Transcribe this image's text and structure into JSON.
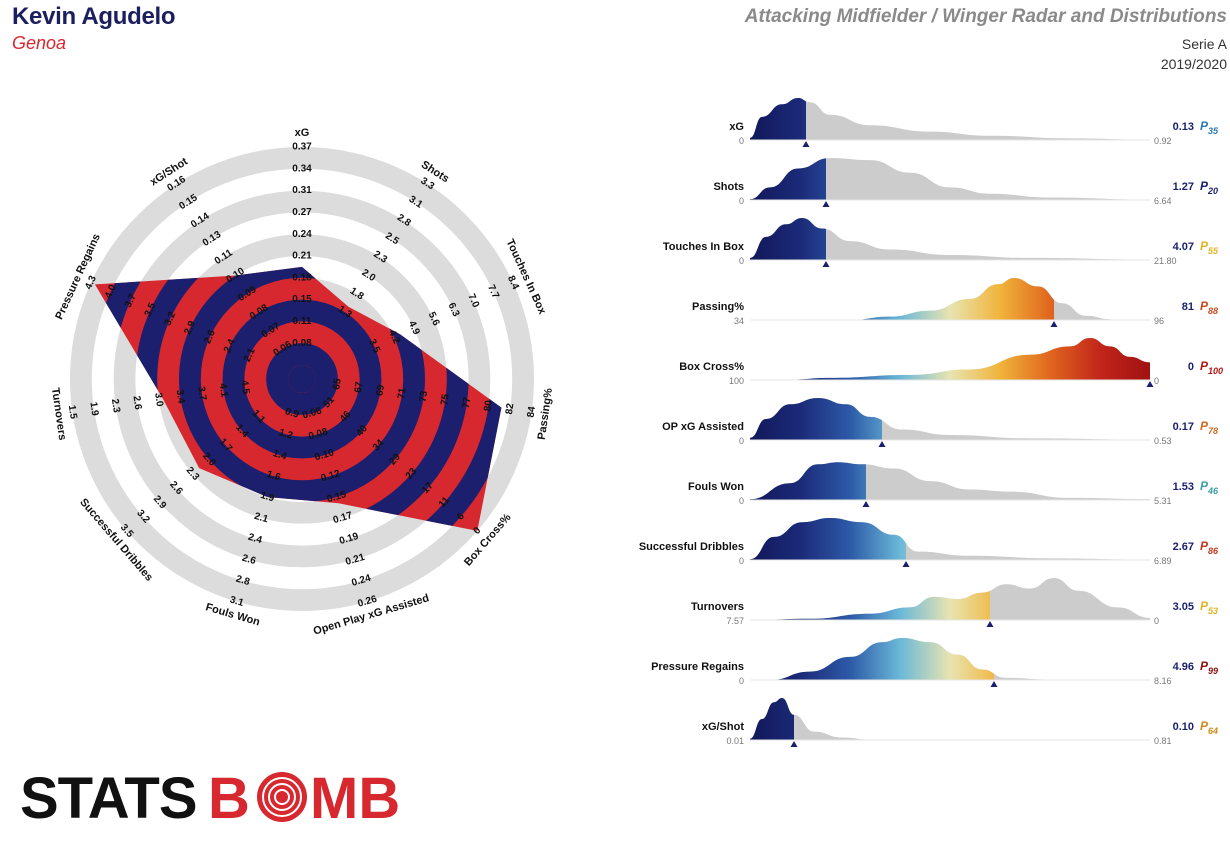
{
  "header": {
    "player": "Kevin Agudelo",
    "team": "Genoa",
    "template": "Attacking Midfielder / Winger Radar and Distributions",
    "competition": "Serie A",
    "season": "2019/2020"
  },
  "colors": {
    "navy": "#1b1f6e",
    "red": "#d7282f",
    "ring_grey": "#dcdcdc",
    "dist_grey": "#cccccc",
    "logo_black": "#111111",
    "logo_red": "#d7282f"
  },
  "logo": {
    "text_left": "STATS",
    "text_b": "B",
    "text_right": "MB"
  },
  "chart_data": [
    {
      "type": "radar",
      "axes": [
        {
          "label": "xG",
          "ticks": [
            "0.08",
            "0.11",
            "0.15",
            "0.18",
            "0.21",
            "0.24",
            "0.27",
            "0.31",
            "0.34",
            "0.37"
          ],
          "value_fraction": 0.45
        },
        {
          "label": "Shots",
          "ticks": [
            "1.3",
            "1.8",
            "2.0",
            "2.3",
            "2.5",
            "2.8",
            "3.1",
            "3.3"
          ],
          "value_fraction": 0.33
        },
        {
          "label": "Touches In Box",
          "ticks": [
            "3.5",
            "4.2",
            "4.9",
            "5.6",
            "6.3",
            "7.0",
            "7.7",
            "8.4"
          ],
          "value_fraction": 0.43
        },
        {
          "label": "Passing%",
          "ticks": [
            "65",
            "67",
            "69",
            "71",
            "73",
            "75",
            "77",
            "80",
            "82",
            "84"
          ],
          "value_fraction": 0.86
        },
        {
          "label": "Box Cross%",
          "ticks": [
            "51",
            "46",
            "40",
            "34",
            "29",
            "23",
            "17",
            "11",
            "6",
            "0"
          ],
          "value_fraction": 1.0
        },
        {
          "label": "Open Play xG Assisted",
          "ticks": [
            "0.06",
            "0.08",
            "0.10",
            "0.12",
            "0.15",
            "0.17",
            "0.19",
            "0.21",
            "0.24",
            "0.26"
          ],
          "value_fraction": 0.53
        },
        {
          "label": "Fouls Won",
          "ticks": [
            "0.9",
            "1.2",
            "1.4",
            "1.6",
            "1.9",
            "2.1",
            "2.4",
            "2.6",
            "2.8",
            "3.1"
          ],
          "value_fraction": 0.5
        },
        {
          "label": "Successful Dribbles",
          "ticks": [
            "1.1",
            "1.4",
            "1.7",
            "2.0",
            "2.3",
            "2.6",
            "2.9",
            "3.2",
            "3.5"
          ],
          "value_fraction": 0.56
        },
        {
          "label": "Turnovers",
          "ticks": [
            "4.5",
            "4.1",
            "3.7",
            "3.4",
            "3.0",
            "2.6",
            "2.3",
            "1.9",
            "1.5"
          ],
          "value_fraction": 0.58
        },
        {
          "label": "Pressure Regains",
          "ticks": [
            "2.1",
            "2.4",
            "2.6",
            "2.9",
            "3.2",
            "3.5",
            "3.7",
            "4.0",
            "4.3"
          ],
          "value_fraction": 0.98
        },
        {
          "label": "xG/Shot",
          "ticks": [
            "0.06",
            "0.07",
            "0.08",
            "0.09",
            "0.10",
            "0.11",
            "0.13",
            "0.14",
            "0.15",
            "0.16"
          ],
          "value_fraction": 0.5
        }
      ]
    },
    {
      "type": "area",
      "metrics": [
        {
          "label": "xG",
          "min": "0",
          "max": "0.92",
          "value": "0.13",
          "percentile": "35",
          "p_color": "#2a7ab5",
          "marker": 0.14,
          "curve": [
            [
              0,
              0.05
            ],
            [
              0.03,
              0.55
            ],
            [
              0.08,
              0.85
            ],
            [
              0.12,
              1.0
            ],
            [
              0.15,
              0.9
            ],
            [
              0.2,
              0.6
            ],
            [
              0.3,
              0.35
            ],
            [
              0.45,
              0.2
            ],
            [
              0.6,
              0.1
            ],
            [
              0.8,
              0.04
            ],
            [
              1,
              0.01
            ]
          ]
        },
        {
          "label": "Shots",
          "min": "0",
          "max": "6.64",
          "value": "1.27",
          "percentile": "20",
          "p_color": "#1b1f6e",
          "marker": 0.19,
          "curve": [
            [
              0,
              0.02
            ],
            [
              0.05,
              0.3
            ],
            [
              0.12,
              0.75
            ],
            [
              0.2,
              1.0
            ],
            [
              0.3,
              0.95
            ],
            [
              0.4,
              0.65
            ],
            [
              0.5,
              0.3
            ],
            [
              0.6,
              0.15
            ],
            [
              0.75,
              0.06
            ],
            [
              1,
              0.01
            ]
          ]
        },
        {
          "label": "Touches In Box",
          "min": "0",
          "max": "21.80",
          "value": "4.07",
          "percentile": "55",
          "p_color": "#e3b420",
          "marker": 0.19,
          "curve": [
            [
              0,
              0.05
            ],
            [
              0.04,
              0.55
            ],
            [
              0.09,
              0.85
            ],
            [
              0.13,
              1.0
            ],
            [
              0.18,
              0.75
            ],
            [
              0.25,
              0.45
            ],
            [
              0.35,
              0.25
            ],
            [
              0.5,
              0.12
            ],
            [
              0.7,
              0.05
            ],
            [
              1,
              0.01
            ]
          ]
        },
        {
          "label": "Passing%",
          "min": "34",
          "max": "96",
          "value": "81",
          "percentile": "88",
          "p_color": "#c8491d",
          "marker": 0.76,
          "curve": [
            [
              0.25,
              0
            ],
            [
              0.35,
              0.08
            ],
            [
              0.45,
              0.22
            ],
            [
              0.55,
              0.5
            ],
            [
              0.62,
              0.85
            ],
            [
              0.66,
              1.0
            ],
            [
              0.72,
              0.8
            ],
            [
              0.78,
              0.4
            ],
            [
              0.84,
              0.1
            ],
            [
              0.9,
              0.02
            ]
          ]
        },
        {
          "label": "Box Cross%",
          "min": "100",
          "max": "0",
          "value": "0",
          "percentile": "100",
          "p_color": "#b3160f",
          "marker": 1.0,
          "curve": [
            [
              0,
              0
            ],
            [
              0.1,
              0.01
            ],
            [
              0.2,
              0.05
            ],
            [
              0.4,
              0.12
            ],
            [
              0.55,
              0.25
            ],
            [
              0.7,
              0.6
            ],
            [
              0.8,
              0.8
            ],
            [
              0.85,
              1.0
            ],
            [
              0.9,
              0.8
            ],
            [
              0.95,
              0.55
            ],
            [
              1,
              0.42
            ]
          ]
        },
        {
          "label": "OP xG Assisted",
          "min": "0",
          "max": "0.53",
          "value": "0.17",
          "percentile": "78",
          "p_color": "#d06a1f",
          "marker": 0.33,
          "curve": [
            [
              0,
              0.05
            ],
            [
              0.04,
              0.5
            ],
            [
              0.1,
              0.85
            ],
            [
              0.17,
              1.0
            ],
            [
              0.24,
              0.85
            ],
            [
              0.3,
              0.55
            ],
            [
              0.38,
              0.25
            ],
            [
              0.5,
              0.12
            ],
            [
              0.7,
              0.04
            ],
            [
              1,
              0.01
            ]
          ]
        },
        {
          "label": "Fouls Won",
          "min": "0",
          "max": "5.31",
          "value": "1.53",
          "percentile": "46",
          "p_color": "#3aa0a8",
          "marker": 0.29,
          "curve": [
            [
              0,
              0.02
            ],
            [
              0.1,
              0.4
            ],
            [
              0.17,
              0.85
            ],
            [
              0.22,
              0.9
            ],
            [
              0.28,
              0.85
            ],
            [
              0.36,
              0.75
            ],
            [
              0.45,
              0.45
            ],
            [
              0.55,
              0.25
            ],
            [
              0.65,
              0.2
            ],
            [
              0.8,
              0.05
            ],
            [
              1,
              0.02
            ]
          ]
        },
        {
          "label": "Successful Dribbles",
          "min": "0",
          "max": "6.89",
          "value": "2.67",
          "percentile": "86",
          "p_color": "#c2371a",
          "marker": 0.39,
          "curve": [
            [
              0,
              0.02
            ],
            [
              0.06,
              0.55
            ],
            [
              0.13,
              0.9
            ],
            [
              0.2,
              1.0
            ],
            [
              0.28,
              0.9
            ],
            [
              0.36,
              0.6
            ],
            [
              0.42,
              0.2
            ],
            [
              0.55,
              0.1
            ],
            [
              0.75,
              0.04
            ],
            [
              1,
              0.01
            ]
          ]
        },
        {
          "label": "Turnovers",
          "min": "7.57",
          "max": "0",
          "value": "3.05",
          "percentile": "53",
          "p_color": "#e3b420",
          "marker": 0.6,
          "curve": [
            [
              0,
              0
            ],
            [
              0.15,
              0.03
            ],
            [
              0.3,
              0.15
            ],
            [
              0.4,
              0.3
            ],
            [
              0.46,
              0.55
            ],
            [
              0.52,
              0.5
            ],
            [
              0.58,
              0.65
            ],
            [
              0.64,
              0.85
            ],
            [
              0.7,
              0.75
            ],
            [
              0.76,
              1.0
            ],
            [
              0.82,
              0.7
            ],
            [
              0.92,
              0.3
            ],
            [
              1,
              0.05
            ]
          ]
        },
        {
          "label": "Pressure Regains",
          "min": "0",
          "max": "8.16",
          "value": "4.96",
          "percentile": "99",
          "p_color": "#8a0f0f",
          "marker": 0.61,
          "curve": [
            [
              0.05,
              0
            ],
            [
              0.15,
              0.2
            ],
            [
              0.25,
              0.55
            ],
            [
              0.33,
              0.9
            ],
            [
              0.38,
              1.0
            ],
            [
              0.45,
              0.9
            ],
            [
              0.52,
              0.6
            ],
            [
              0.58,
              0.25
            ],
            [
              0.64,
              0.05
            ],
            [
              0.75,
              0.01
            ]
          ]
        },
        {
          "label": "xG/Shot",
          "min": "0.01",
          "max": "0.81",
          "value": "0.10",
          "percentile": "64",
          "p_color": "#d08a1a",
          "marker": 0.11,
          "curve": [
            [
              0,
              0.03
            ],
            [
              0.03,
              0.5
            ],
            [
              0.06,
              0.9
            ],
            [
              0.08,
              1.0
            ],
            [
              0.11,
              0.6
            ],
            [
              0.16,
              0.2
            ],
            [
              0.23,
              0.06
            ],
            [
              0.3,
              0.01
            ]
          ]
        }
      ]
    }
  ]
}
